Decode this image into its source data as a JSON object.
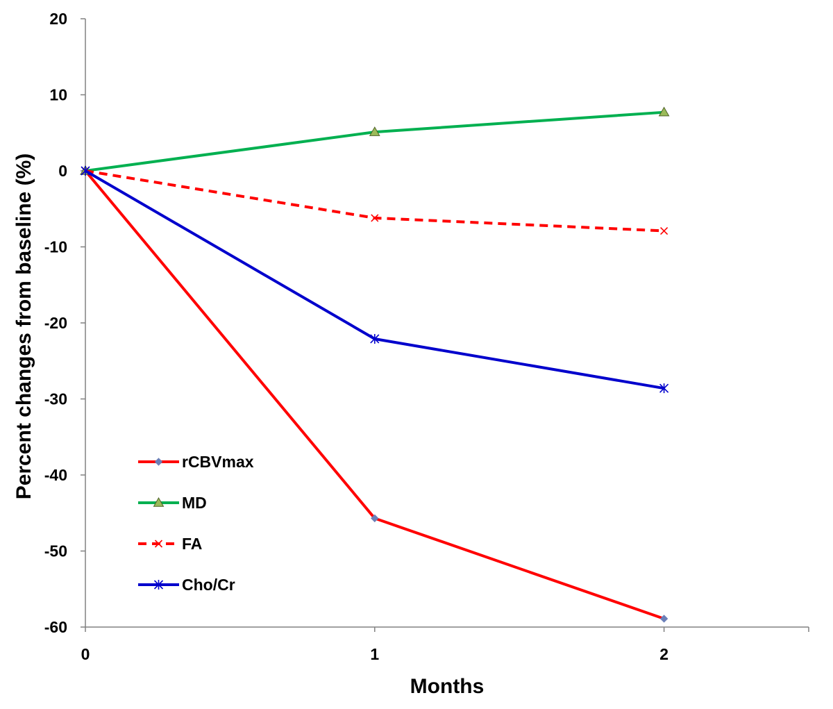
{
  "chart_data": {
    "type": "line",
    "title": "",
    "xlabel": "Months",
    "ylabel": "Percent changes from baseline (%)",
    "x": [
      0,
      1,
      2
    ],
    "x_tick_labels": [
      "0",
      "1",
      "2"
    ],
    "xlim": [
      0,
      2.5
    ],
    "ylim": [
      -60,
      20
    ],
    "y_ticks": [
      20,
      10,
      0,
      -10,
      -20,
      -30,
      -40,
      -50,
      -60
    ],
    "y_tick_labels": [
      "20",
      "10",
      "0",
      "-10",
      "-20",
      "-30",
      "-40",
      "-50",
      "-60"
    ],
    "grid": false,
    "legend_position": "lower-left",
    "series": [
      {
        "name": "rCBVmax",
        "values": [
          0,
          -45.7,
          -58.9
        ],
        "color": "#ff0000",
        "dash": "solid",
        "marker": "diamond",
        "marker_color": "#6b7fb8"
      },
      {
        "name": "MD",
        "values": [
          0,
          5.1,
          7.7
        ],
        "color": "#00b050",
        "dash": "solid",
        "marker": "triangle",
        "marker_color": "#9bbb59"
      },
      {
        "name": "FA",
        "values": [
          0,
          -6.2,
          -7.9
        ],
        "color": "#ff0000",
        "dash": "dashed",
        "marker": "x",
        "marker_color": "#ff0000"
      },
      {
        "name": "Cho/Cr",
        "values": [
          0,
          -22.1,
          -28.6
        ],
        "color": "#0000cc",
        "dash": "solid",
        "marker": "asterisk",
        "marker_color": "#0000cc"
      }
    ]
  }
}
